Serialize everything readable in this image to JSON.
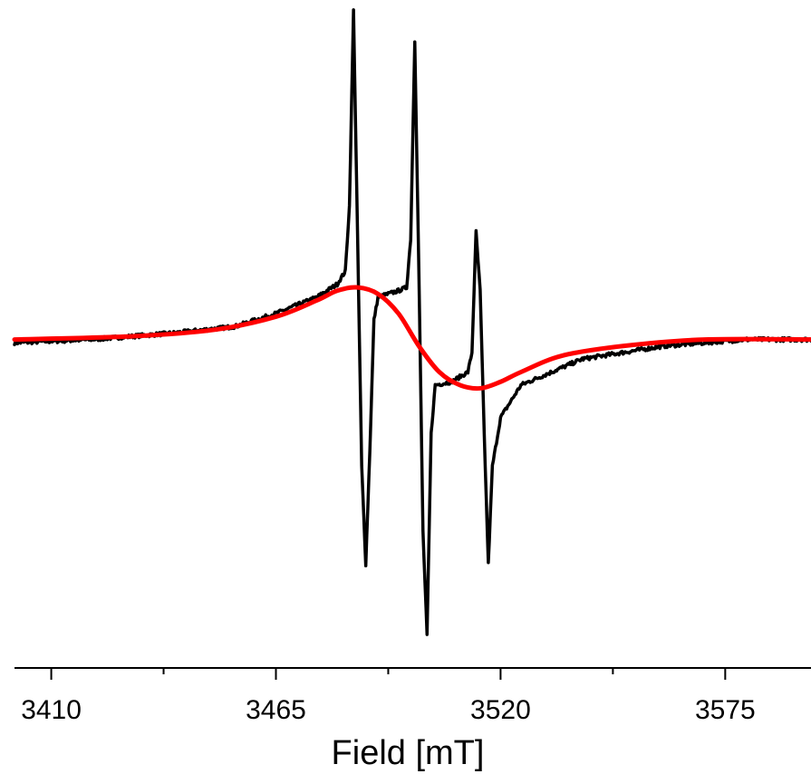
{
  "chart_data": {
    "type": "line",
    "title": "",
    "xlabel": "Field [mT]",
    "ylabel": "",
    "xlim": [
      3401,
      3596
    ],
    "ylim": [
      -1.0,
      1.0
    ],
    "y_axis_shown": false,
    "x_major_ticks": [
      3410,
      3465,
      3520,
      3575
    ],
    "x_tick_labels": [
      "3410",
      "3465",
      "3520",
      "3575"
    ],
    "x_minor_ticks": [
      3437.5,
      3492.5,
      3547.5
    ],
    "grid": false,
    "legend": "none",
    "series": [
      {
        "color": "#000000",
        "noisy": true,
        "points": [
          [
            3401,
            -0.02
          ],
          [
            3420,
            -0.01
          ],
          [
            3440,
            0.01
          ],
          [
            3455,
            0.03
          ],
          [
            3465,
            0.07
          ],
          [
            3475,
            0.12
          ],
          [
            3480,
            0.16
          ],
          [
            3482,
            0.2
          ],
          [
            3483,
            0.4
          ],
          [
            3484,
            1.0
          ],
          [
            3485,
            0.3
          ],
          [
            3486,
            -0.4
          ],
          [
            3487,
            -0.7
          ],
          [
            3488,
            -0.35
          ],
          [
            3489,
            0.05
          ],
          [
            3490,
            0.12
          ],
          [
            3495,
            0.14
          ],
          [
            3497,
            0.15
          ],
          [
            3498,
            0.3
          ],
          [
            3499,
            0.91
          ],
          [
            3500,
            0.2
          ],
          [
            3501,
            -0.6
          ],
          [
            3502,
            -0.92
          ],
          [
            3503,
            -0.3
          ],
          [
            3504,
            -0.15
          ],
          [
            3508,
            -0.14
          ],
          [
            3512,
            -0.11
          ],
          [
            3513,
            -0.05
          ],
          [
            3514,
            0.32
          ],
          [
            3515,
            0.14
          ],
          [
            3516,
            -0.3
          ],
          [
            3517,
            -0.7
          ],
          [
            3518,
            -0.4
          ],
          [
            3520,
            -0.25
          ],
          [
            3525,
            -0.15
          ],
          [
            3540,
            -0.07
          ],
          [
            3560,
            -0.03
          ],
          [
            3580,
            -0.01
          ],
          [
            3596,
            -0.01
          ]
        ]
      },
      {
        "color": "#ff0000",
        "noisy": false,
        "points": [
          [
            3401,
            -0.01
          ],
          [
            3430,
            0.0
          ],
          [
            3450,
            0.02
          ],
          [
            3465,
            0.06
          ],
          [
            3475,
            0.11
          ],
          [
            3480,
            0.14
          ],
          [
            3485,
            0.15
          ],
          [
            3490,
            0.13
          ],
          [
            3495,
            0.07
          ],
          [
            3500,
            -0.03
          ],
          [
            3505,
            -0.11
          ],
          [
            3510,
            -0.15
          ],
          [
            3515,
            -0.16
          ],
          [
            3520,
            -0.14
          ],
          [
            3525,
            -0.11
          ],
          [
            3535,
            -0.06
          ],
          [
            3550,
            -0.03
          ],
          [
            3570,
            -0.01
          ],
          [
            3596,
            -0.01
          ]
        ]
      }
    ]
  }
}
